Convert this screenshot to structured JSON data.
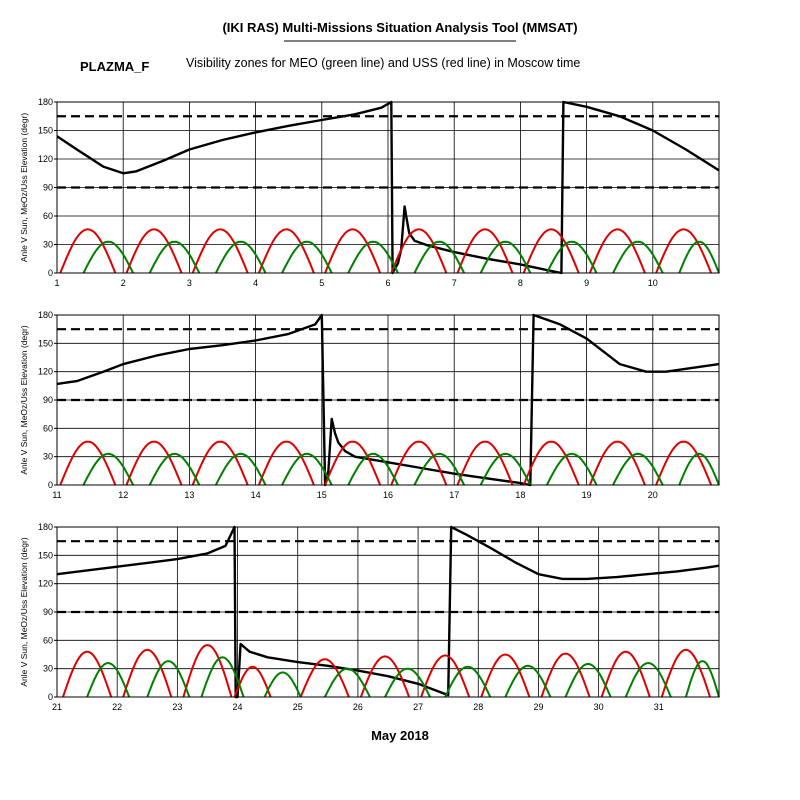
{
  "header": {
    "title": "(IKI RAS) Multi-Missions Situation Analysis Tool (MMSAT)",
    "mission": "PLAZMA_F",
    "subtitle": "Visibility zones for MEO (green line) and USS (red line) in Moscow time",
    "footer": "May 2018"
  },
  "colors": {
    "red": "#e00000",
    "green": "#008000",
    "black": "#000000"
  },
  "chart_data": [
    {
      "type": "line",
      "xlim": [
        1,
        11
      ],
      "ylim": [
        0,
        180
      ],
      "xticks": [
        1,
        2,
        3,
        4,
        5,
        6,
        7,
        8,
        9,
        10
      ],
      "yticks": [
        0,
        30,
        60,
        90,
        120,
        150,
        180
      ],
      "ylabel": "Anle V Sun, MeOz/Uss Elevation (degr)",
      "grid": true,
      "hlines": [
        90,
        165
      ],
      "series": [
        {
          "color": "black",
          "x": [
            1,
            1.3,
            1.7,
            2.0,
            2.2,
            2.6,
            3.0,
            3.5,
            4.0,
            4.5,
            5.0,
            5.5,
            5.9,
            6.05,
            6.07,
            6.1,
            6.15,
            6.2,
            6.25,
            6.28,
            6.32,
            6.4,
            6.6,
            7.0,
            7.5,
            8.0,
            8.4,
            8.62,
            8.65,
            9.0,
            9.5,
            10.0,
            10.5,
            11
          ],
          "y": [
            144,
            130,
            112,
            105,
            107,
            118,
            130,
            140,
            148,
            155,
            161,
            167,
            174,
            180,
            0,
            4,
            10,
            25,
            70,
            58,
            42,
            34,
            29,
            22,
            15,
            9,
            3,
            0,
            180,
            175,
            165,
            150,
            130,
            108
          ]
        },
        {
          "color": "red",
          "arcs": [
            [
              1.05,
              1.88,
              46
            ],
            [
              2.05,
              2.88,
              46
            ],
            [
              3.05,
              3.88,
              46
            ],
            [
              4.05,
              4.88,
              46
            ],
            [
              5.05,
              5.88,
              46
            ],
            [
              6.05,
              6.88,
              46
            ],
            [
              7.05,
              7.88,
              46
            ],
            [
              8.05,
              8.88,
              46
            ],
            [
              9.05,
              9.88,
              46
            ],
            [
              10.05,
              10.88,
              46
            ]
          ]
        },
        {
          "color": "green",
          "arcs": [
            [
              1.4,
              2.15,
              33
            ],
            [
              2.4,
              3.15,
              33
            ],
            [
              3.4,
              4.15,
              33
            ],
            [
              4.4,
              5.15,
              33
            ],
            [
              5.4,
              6.15,
              33
            ],
            [
              6.4,
              7.15,
              33
            ],
            [
              7.4,
              8.15,
              33
            ],
            [
              8.4,
              9.15,
              33
            ],
            [
              9.4,
              10.15,
              33
            ],
            [
              10.4,
              11.0,
              33
            ]
          ]
        }
      ]
    },
    {
      "type": "line",
      "xlim": [
        11,
        21
      ],
      "ylim": [
        0,
        180
      ],
      "xticks": [
        11,
        12,
        13,
        14,
        15,
        16,
        17,
        18,
        19,
        20
      ],
      "yticks": [
        0,
        30,
        60,
        90,
        120,
        150,
        180
      ],
      "ylabel": "Anle V Sun, MeOz/Uss Elevation (degr)",
      "grid": true,
      "hlines": [
        90,
        165
      ],
      "series": [
        {
          "color": "black",
          "x": [
            11,
            11.3,
            11.7,
            12.0,
            12.5,
            13.0,
            13.5,
            14.0,
            14.5,
            14.9,
            15.0,
            15.05,
            15.1,
            15.15,
            15.2,
            15.25,
            15.35,
            15.5,
            16.0,
            16.5,
            17.0,
            17.5,
            18.0,
            18.15,
            18.2,
            18.6,
            19.0,
            19.5,
            19.9,
            20.2,
            20.5,
            21
          ],
          "y": [
            107,
            110,
            120,
            128,
            137,
            144,
            148,
            153,
            160,
            170,
            180,
            0,
            15,
            70,
            55,
            45,
            36,
            30,
            24,
            18,
            12,
            7,
            2,
            0,
            180,
            170,
            155,
            128,
            120,
            120,
            123,
            128
          ]
        },
        {
          "color": "red",
          "arcs": [
            [
              11.05,
              11.88,
              46
            ],
            [
              12.05,
              12.88,
              46
            ],
            [
              13.05,
              13.88,
              46
            ],
            [
              14.05,
              14.88,
              46
            ],
            [
              15.05,
              15.88,
              46
            ],
            [
              16.05,
              16.88,
              46
            ],
            [
              17.05,
              17.88,
              46
            ],
            [
              18.05,
              18.88,
              46
            ],
            [
              19.05,
              19.88,
              46
            ],
            [
              20.05,
              20.88,
              46
            ]
          ]
        },
        {
          "color": "green",
          "arcs": [
            [
              11.4,
              12.15,
              33
            ],
            [
              12.4,
              13.15,
              33
            ],
            [
              13.4,
              14.15,
              33
            ],
            [
              14.4,
              15.15,
              33
            ],
            [
              15.4,
              16.15,
              33
            ],
            [
              16.4,
              17.15,
              33
            ],
            [
              17.4,
              18.15,
              33
            ],
            [
              18.4,
              19.15,
              33
            ],
            [
              19.4,
              20.15,
              33
            ],
            [
              20.4,
              21.0,
              33
            ]
          ]
        }
      ]
    },
    {
      "type": "line",
      "xlim": [
        21,
        32
      ],
      "ylim": [
        0,
        180
      ],
      "xticks": [
        21,
        22,
        23,
        24,
        25,
        26,
        27,
        28,
        29,
        30,
        31
      ],
      "yticks": [
        0,
        30,
        60,
        90,
        120,
        150,
        180
      ],
      "ylabel": "Anle V Sun, MeOz/Uss Elevation (degr)",
      "xlabel": "May 2018",
      "grid": true,
      "hlines": [
        90,
        165
      ],
      "series": [
        {
          "color": "black",
          "x": [
            21,
            21.5,
            22.0,
            22.5,
            23.0,
            23.5,
            23.8,
            23.95,
            23.97,
            24.0,
            24.05,
            24.2,
            24.5,
            25.0,
            25.5,
            26.0,
            26.5,
            27.0,
            27.5,
            27.55,
            27.8,
            28.2,
            28.6,
            29.0,
            29.4,
            29.8,
            30.3,
            30.8,
            31.3,
            31.8,
            32
          ],
          "y": [
            130,
            134,
            138,
            142,
            146,
            152,
            160,
            180,
            0,
            0,
            56,
            48,
            42,
            37,
            33,
            28,
            22,
            14,
            2,
            180,
            172,
            158,
            143,
            130,
            125,
            125,
            127,
            130,
            133,
            137,
            139
          ]
        },
        {
          "color": "red",
          "arcs": [
            [
              21.1,
              21.9,
              48
            ],
            [
              22.1,
              22.9,
              50
            ],
            [
              23.1,
              23.9,
              55
            ],
            [
              23.95,
              24.55,
              32
            ],
            [
              25.05,
              25.85,
              40
            ],
            [
              26.05,
              26.85,
              43
            ],
            [
              27.05,
              27.85,
              44
            ],
            [
              28.05,
              28.85,
              45
            ],
            [
              29.05,
              29.85,
              46
            ],
            [
              30.05,
              30.85,
              48
            ],
            [
              31.05,
              31.85,
              50
            ]
          ]
        },
        {
          "color": "green",
          "arcs": [
            [
              21.5,
              22.2,
              36
            ],
            [
              22.5,
              23.2,
              38
            ],
            [
              23.4,
              24.1,
              42
            ],
            [
              24.45,
              25.05,
              26
            ],
            [
              25.45,
              26.2,
              30
            ],
            [
              26.45,
              27.2,
              30
            ],
            [
              27.45,
              28.2,
              32
            ],
            [
              28.45,
              29.2,
              33
            ],
            [
              29.45,
              30.2,
              35
            ],
            [
              30.45,
              31.2,
              36
            ],
            [
              31.45,
              32.0,
              38
            ]
          ]
        }
      ]
    }
  ]
}
